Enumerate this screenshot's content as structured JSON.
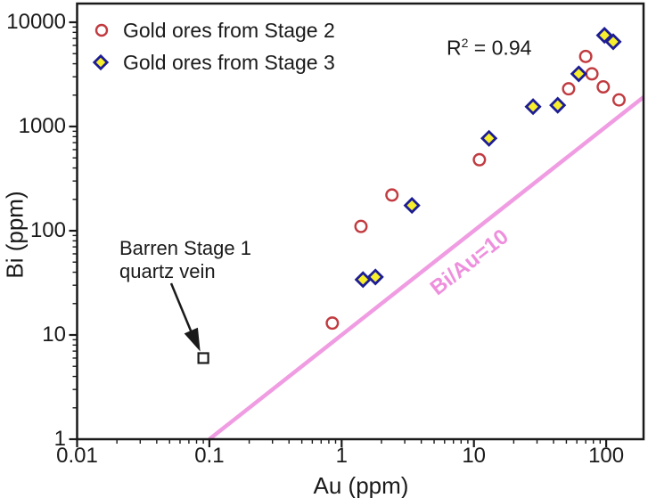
{
  "figure": {
    "background": "#ffffff",
    "text_color": "#1a1a1a",
    "frame_color": "#1a1a1a"
  },
  "chart_data": {
    "type": "scatter",
    "xlabel": "Au (ppm)",
    "ylabel": "Bi (ppm)",
    "x_scale": "log",
    "y_scale": "log",
    "xlim": [
      0.01,
      192
    ],
    "ylim": [
      1,
      15000
    ],
    "x_ticks": [
      "0.01",
      "0.1",
      "1",
      "10",
      "100"
    ],
    "y_ticks": [
      "1",
      "10",
      "100",
      "1000",
      "10000"
    ],
    "grid": false,
    "legend_position": "top-left-inside",
    "series": [
      {
        "name": "Gold ores from Stage 2",
        "marker": "open-circle",
        "stroke": "#c13b40",
        "fill": "#ffffff",
        "points_au_bi": [
          [
            0.85,
            13
          ],
          [
            1.4,
            110
          ],
          [
            2.4,
            220
          ],
          [
            11,
            480
          ],
          [
            52,
            2300
          ],
          [
            70,
            4700
          ],
          [
            78,
            3200
          ],
          [
            95,
            2400
          ],
          [
            125,
            1800
          ]
        ]
      },
      {
        "name": "Gold ores from Stage 3",
        "marker": "diamond",
        "stroke": "#1c1c94",
        "fill": "#f7ef2d",
        "points_au_bi": [
          [
            1.45,
            34
          ],
          [
            1.8,
            36
          ],
          [
            3.4,
            175
          ],
          [
            13,
            770
          ],
          [
            28,
            1550
          ],
          [
            43,
            1600
          ],
          [
            62,
            3200
          ],
          [
            97,
            7500
          ],
          [
            113,
            6500
          ]
        ]
      },
      {
        "name": "Barren Stage 1 quartz vein",
        "marker": "open-square",
        "stroke": "#1a1a1a",
        "fill": "#ffffff",
        "points_au_bi": [
          [
            0.09,
            6
          ]
        ]
      }
    ],
    "reference_line": {
      "label": "Bi/Au=10",
      "bi_over_au_ratio": 10,
      "color": "#f09ce2",
      "label_color": "#ee8fdd",
      "x_start": 0.1,
      "x_end": 192
    },
    "annotations": {
      "r_squared": {
        "base": "R",
        "sup": "2",
        "rest": " = 0.94"
      },
      "barren": {
        "line1": "Barren Stage 1",
        "line2": "quartz vein"
      }
    }
  }
}
